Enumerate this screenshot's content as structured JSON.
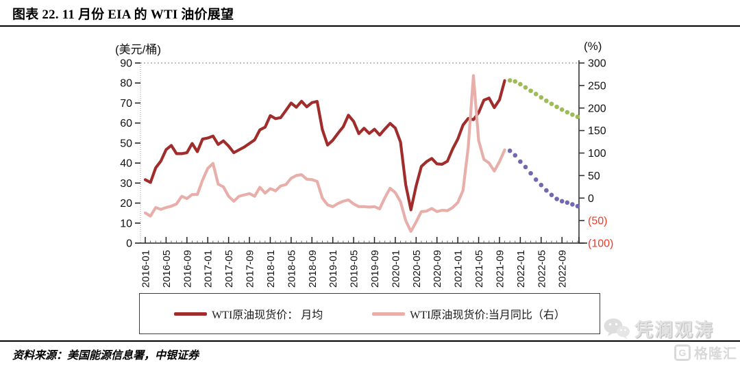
{
  "title": "图表 22. 11 月份 EIA 的 WTI 油价展望",
  "source_note": "资料来源：美国能源信息署，中银证券",
  "watermark": {
    "wechat_account": "凭澜观涛",
    "logo_text": "格隆汇",
    "logo_letter": "G"
  },
  "chart_data": {
    "type": "line",
    "left_axis": {
      "unit_label": "(美元/桶)",
      "min": 0,
      "max": 90,
      "ticks": [
        90,
        80,
        70,
        60,
        50,
        40,
        30,
        20,
        10,
        0
      ]
    },
    "right_axis": {
      "unit_label": "(%)",
      "min": -100,
      "max": 300,
      "ticks": [
        300,
        250,
        200,
        150,
        100,
        50,
        0,
        -50,
        -100
      ],
      "negative_label_format": "parentheses",
      "negative_label_color": "#ee3a27"
    },
    "x_axis": {
      "start": "2016-01",
      "end": "2022-12",
      "step": "monthly",
      "tick_labels": [
        "2016-01",
        "2016-05",
        "2016-09",
        "2017-01",
        "2017-05",
        "2017-09",
        "2018-01",
        "2018-05",
        "2018-09",
        "2019-01",
        "2019-05",
        "2019-09",
        "2020-01",
        "2020-05",
        "2020-09",
        "2021-01",
        "2021-05",
        "2021-09",
        "2022-01",
        "2022-05",
        "2022-09"
      ]
    },
    "legend": [
      {
        "label": "WTI原油现货价： 月均",
        "color": "#a02c2b"
      },
      {
        "label": "WTI原油现货价:当月同比（右）",
        "color": "#e8afaa"
      }
    ],
    "series": [
      {
        "id": "wti_price_actual",
        "axis": "left",
        "color": "#a02c2b",
        "style": "solid",
        "start": "2016-01",
        "values": [
          31.7,
          30.3,
          37.6,
          41,
          46.7,
          48.8,
          44.7,
          44.7,
          45.2,
          49.8,
          45.7,
          52,
          52.5,
          53.5,
          49.3,
          51.1,
          48.5,
          45.2,
          46.6,
          48,
          49.8,
          51.6,
          56.6,
          57.9,
          63.7,
          62.2,
          62.7,
          66.3,
          70,
          67.9,
          70.9,
          68.1,
          70.2,
          70.8,
          56.7,
          49,
          51.4,
          54.9,
          58.1,
          63.9,
          60.8,
          54.7,
          57.4,
          54.8,
          56.9,
          54,
          57,
          59.8,
          57.5,
          50.5,
          29.2,
          16.6,
          28.6,
          38.3,
          40.7,
          42.3,
          39.6,
          39.4,
          40.9,
          47,
          52,
          59,
          62.3,
          61.7,
          65.2,
          71.4,
          72.5,
          67.7,
          71.6,
          81.2
        ]
      },
      {
        "id": "wti_price_eia_forecast",
        "axis": "left",
        "color": "#9dbb57",
        "style": "dotted",
        "start": "2021-11",
        "values": [
          81.3,
          80.8,
          79.4,
          77.8,
          76.1,
          74.5,
          72.8,
          71.1,
          69.6,
          68.1,
          66.7,
          65.4,
          64.2,
          63.1
        ]
      },
      {
        "id": "wti_yoy_actual",
        "axis": "right",
        "color": "#e8afaa",
        "style": "solid",
        "start": "2016-01",
        "values": [
          -33,
          -40,
          -21,
          -25,
          -21,
          -18,
          -13,
          4,
          -1,
          8,
          8,
          40,
          66,
          77,
          31,
          25,
          4,
          -7,
          4,
          7,
          10,
          4,
          24,
          11,
          21,
          16,
          27,
          30,
          44,
          50,
          52,
          42,
          41,
          37,
          0,
          -15,
          -19,
          -12,
          -7,
          -4,
          -13,
          -19,
          -19,
          -20,
          -19,
          -24,
          1,
          22,
          12,
          -8,
          -50,
          -74,
          -53,
          -30,
          -29,
          -23,
          -30,
          -27,
          -28,
          -21,
          -10,
          17,
          113,
          272,
          128,
          86,
          78,
          60,
          81,
          107
        ]
      },
      {
        "id": "wti_yoy_eia_forecast",
        "axis": "right",
        "color": "#7466af",
        "style": "dotted",
        "start": "2021-11",
        "values": [
          105,
          95,
          81,
          69,
          55,
          41,
          29,
          17,
          7,
          -2,
          -7,
          -10,
          -14,
          -18
        ]
      }
    ]
  }
}
